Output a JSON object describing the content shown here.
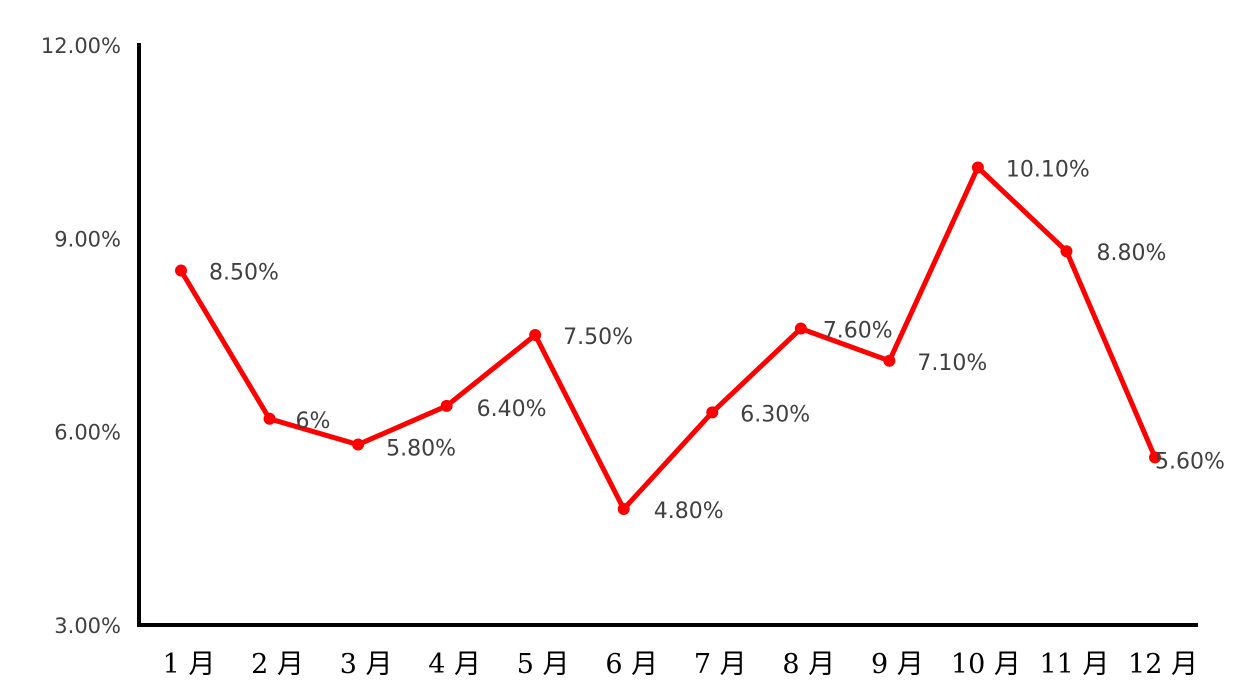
{
  "chart_data": {
    "type": "line",
    "categories": [
      "1 月",
      "2 月",
      "3 月",
      "4 月",
      "5 月",
      "6 月",
      "7 月",
      "8 月",
      "9 月",
      "10 月",
      "11 月",
      "12 月"
    ],
    "series": [
      {
        "values": [
          8.5,
          6.2,
          5.8,
          6.4,
          7.5,
          4.8,
          6.3,
          7.6,
          7.1,
          10.1,
          8.8,
          5.6
        ],
        "labels": [
          "8.50%",
          "6%",
          "5.80%",
          "6.40%",
          "7.50%",
          "4.80%",
          "6.30%",
          "7.60%",
          "7.10%",
          "10.10%",
          "8.80%",
          "5.60%"
        ],
        "color": "#ff0000"
      }
    ],
    "ylim": [
      3,
      12
    ],
    "yticks": [
      3,
      6,
      9,
      12
    ],
    "ytick_labels": [
      "3.00%",
      "6.00%",
      "9.00%",
      "12.00%"
    ],
    "title": "",
    "xlabel": "",
    "ylabel": "",
    "grid": false,
    "legend": "none",
    "axis_color": "#000000"
  }
}
